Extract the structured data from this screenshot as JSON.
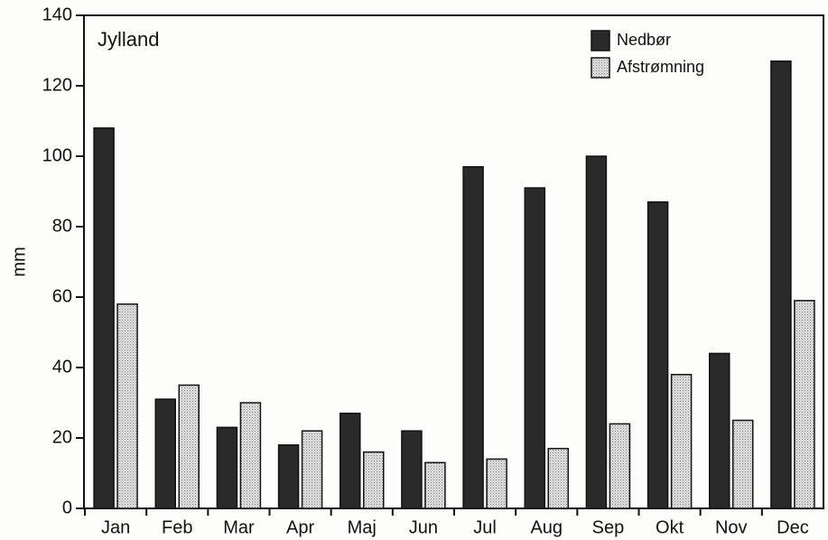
{
  "chart_data": {
    "type": "bar",
    "title": "Jylland",
    "y_label": "mm",
    "categories": [
      "Jan",
      "Feb",
      "Mar",
      "Apr",
      "Maj",
      "Jun",
      "Jul",
      "Aug",
      "Sep",
      "Okt",
      "Nov",
      "Dec"
    ],
    "series": [
      {
        "name": "Nedbør",
        "color": "#2a2a2a",
        "values": [
          108,
          31,
          23,
          18,
          27,
          22,
          97,
          91,
          100,
          87,
          44,
          127
        ]
      },
      {
        "name": "Afstrømning",
        "color": "#cfcfcf",
        "values": [
          58,
          35,
          30,
          22,
          16,
          13,
          14,
          17,
          24,
          38,
          25,
          59
        ]
      }
    ],
    "ylim": [
      0,
      140
    ],
    "yticks": [
      0,
      20,
      40,
      60,
      80,
      100,
      120,
      140
    ],
    "legend": "upper right"
  }
}
